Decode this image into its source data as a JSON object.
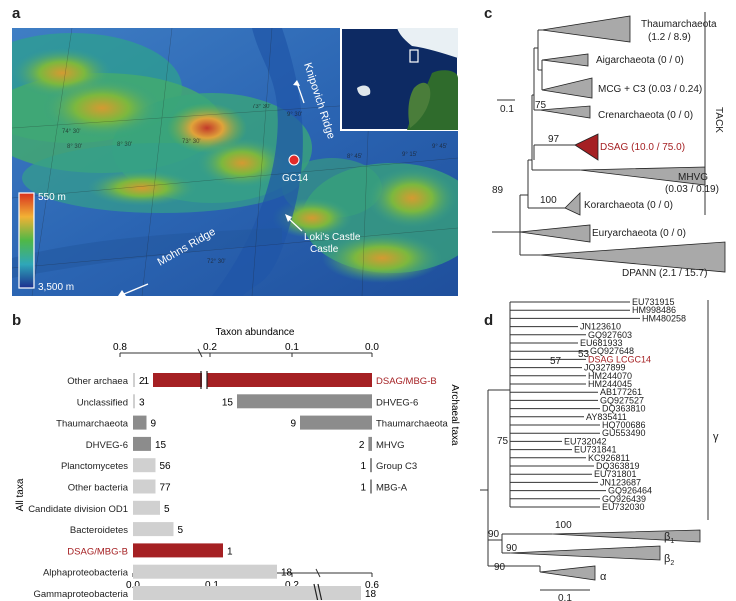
{
  "panels": {
    "a": "a",
    "b": "b",
    "c": "c",
    "d": "d"
  },
  "map": {
    "ridge_top": "Knipovich Ridge",
    "ridge_bottom": "Mohns Ridge",
    "site": "GC14",
    "vent": "Loki's Castle",
    "depth_max": "550 m",
    "depth_min": "3,500 m",
    "grid_labels": [
      "74° 30'",
      "73° 30'",
      "72° 30'",
      "73° 30'",
      "8° 30'",
      "8° 45'",
      "9° 15'",
      "8° 30'",
      "9° 45'",
      "9° 30'"
    ]
  },
  "chart_data": {
    "type": "bar",
    "title": "Taxon abundance",
    "ylabel_left": "All taxa",
    "ylabel_right": "Archaeal taxa",
    "top_axis_ticks": [
      "0.8",
      "0.2",
      "0.1",
      "0.0"
    ],
    "bottom_axis_ticks": [
      "0.0",
      "0.1",
      "0.2",
      "0.6"
    ],
    "all_taxa": [
      {
        "label": "Other archaea",
        "abundance": 0.001,
        "count": "2"
      },
      {
        "label": "Unclassified",
        "abundance": 0.001,
        "count": "3"
      },
      {
        "label": "Thaumarchaeota",
        "abundance": 0.015,
        "count": "9"
      },
      {
        "label": "DHVEG-6",
        "abundance": 0.02,
        "count": "15"
      },
      {
        "label": "Planctomycetes",
        "abundance": 0.025,
        "count": "56"
      },
      {
        "label": "Other bacteria",
        "abundance": 0.025,
        "count": "77"
      },
      {
        "label": "Candidate division OD1",
        "abundance": 0.03,
        "count": "5"
      },
      {
        "label": "Bacteroidetes",
        "abundance": 0.045,
        "count": "5"
      },
      {
        "label": "DSAG/MBG-B",
        "abundance": 0.1,
        "count": "1"
      },
      {
        "label": "Alphaproteobacteria",
        "abundance": 0.16,
        "count": "18"
      },
      {
        "label": "Gammaproteobacteria",
        "abundance": 0.59,
        "count": "18"
      }
    ],
    "archaeal_taxa": [
      {
        "label": "DSAG/MBG-B",
        "abundance": 0.72,
        "count": "1"
      },
      {
        "label": "DHVEG-6",
        "abundance": 0.15,
        "count": "15"
      },
      {
        "label": "Thaumarchaeota",
        "abundance": 0.08,
        "count": "9"
      },
      {
        "label": "MHVG",
        "abundance": 0.004,
        "count": "2"
      },
      {
        "label": "Group C3",
        "abundance": 0.002,
        "count": "1"
      },
      {
        "label": "MBG-A",
        "abundance": 0.002,
        "count": "1"
      }
    ],
    "colors": {
      "dsag": "#a52023",
      "archaea": "#8c8c8c",
      "bacteria": "#d0d0d0"
    }
  },
  "tree_c": {
    "clades": [
      {
        "name": "Thaumarchaeota",
        "value": "(1.2 / 8.9)"
      },
      {
        "name": "Aigarchaeota (0 / 0)",
        "value": ""
      },
      {
        "name": "MCG + C3 (0.03 / 0.24)",
        "value": ""
      },
      {
        "name": "Crenarchaeota (0 / 0)",
        "value": ""
      },
      {
        "name": "DSAG (10.0 / 75.0)",
        "value": ""
      },
      {
        "name": "MHVG",
        "value": "(0.03 / 0.19)"
      },
      {
        "name": "Korarchaeota (0 / 0)",
        "value": ""
      },
      {
        "name": "Euryarchaeota (0 / 0)",
        "value": ""
      },
      {
        "name": "DPANN (2.1 / 15.7)",
        "value": ""
      }
    ],
    "bootstrap": [
      "75",
      "97",
      "89",
      "100"
    ],
    "scale": "0.1",
    "group": "TACK"
  },
  "tree_d": {
    "leaves": [
      "EU731915",
      "HM998486",
      "HM480258",
      "JN123610",
      "GQ927603",
      "EU681933",
      "GQ927648",
      "DSAG LCGC14",
      "JQ327899",
      "HM244070",
      "HM244045",
      "AB177261",
      "GQ927527",
      "DQ363810",
      "AY835411",
      "HQ700686",
      "GU553490",
      "EU732042",
      "EU731841",
      "KC926811",
      "DQ363819",
      "EU731801",
      "JN123687",
      "GQ926464",
      "GQ926439",
      "EU732030"
    ],
    "bootstrap": [
      "57",
      "53",
      "75",
      "100",
      "90",
      "90",
      "90"
    ],
    "groups": [
      "γ",
      "β",
      "β",
      "α"
    ],
    "subscripts": [
      "1",
      "2"
    ],
    "scale": "0.1"
  }
}
